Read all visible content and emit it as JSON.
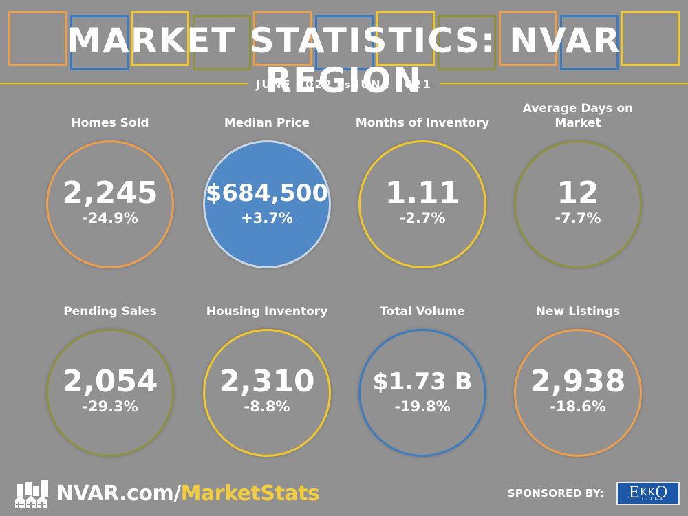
{
  "header": {
    "title": "MARKET STATISTICS: NVAR REGION",
    "subtitle_left": "JUNE 2022",
    "subtitle_vs": "vs",
    "subtitle_right": "JUNE 2021"
  },
  "colors": {
    "background": "#919191",
    "orange": "#eb9e4e",
    "blue": "#3c7bc0",
    "yellow": "#f0c72c",
    "olive": "#8e9140",
    "filled_blue": "#5089c6",
    "accent_text": "#f3cd3e",
    "sponsor_blue": "#1d57a7"
  },
  "decor_squares": [
    "orange",
    "blue",
    "yellow",
    "olive",
    "orange",
    "blue",
    "yellow",
    "olive",
    "orange",
    "blue",
    "yellow"
  ],
  "stats": [
    {
      "label": "Homes Sold",
      "value": "2,245",
      "change": "-24.9%",
      "ring": "orange",
      "filled": false
    },
    {
      "label": "Median Price",
      "value": "$684,500",
      "change": "+3.7%",
      "ring": "filled_blue",
      "filled": true
    },
    {
      "label": "Months of Inventory",
      "value": "1.11",
      "change": "-2.7%",
      "ring": "yellow",
      "filled": false
    },
    {
      "label": "Average Days on Market",
      "value": "12",
      "change": "-7.7%",
      "ring": "olive",
      "filled": false
    },
    {
      "label": "Pending Sales",
      "value": "2,054",
      "change": "-29.3%",
      "ring": "olive",
      "filled": false
    },
    {
      "label": "Housing Inventory",
      "value": "2,310",
      "change": "-8.8%",
      "ring": "yellow",
      "filled": false
    },
    {
      "label": "Total Volume",
      "value": "$1.73 B",
      "change": "-19.8%",
      "ring": "blue",
      "filled": false
    },
    {
      "label": "New Listings",
      "value": "2,938",
      "change": "-18.6%",
      "ring": "orange",
      "filled": false
    }
  ],
  "footer": {
    "url_main": "NVAR.com/",
    "url_highlight": "MarketStats",
    "logo_icon": "city-houses-icon",
    "sponsor_label": "SPONSORED BY:",
    "sponsor_name_e": "E",
    "sponsor_name_kk": "KK",
    "sponsor_name_o": "O",
    "sponsor_sub": "TITLE"
  }
}
